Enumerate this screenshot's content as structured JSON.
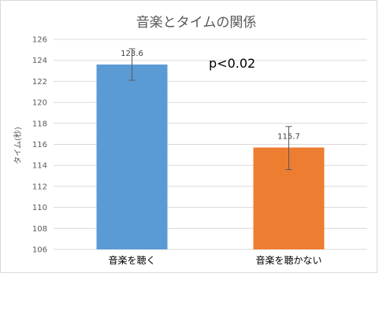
{
  "chart_data": {
    "type": "bar",
    "title": "音楽とタイムの関係",
    "xlabel": "",
    "ylabel": "タイム(秒)",
    "categories": [
      "音楽を聴く",
      "音楽を聴かない"
    ],
    "values": [
      123.6,
      115.7
    ],
    "data_labels": [
      "123.6",
      "115.7"
    ],
    "error_bars": [
      {
        "low": 122.1,
        "high": 125.1
      },
      {
        "low": 113.6,
        "high": 117.7
      }
    ],
    "colors": [
      "#5b9bd5",
      "#ed7d31"
    ],
    "ylim": [
      106,
      126
    ],
    "yticks": [
      106,
      108,
      110,
      112,
      114,
      116,
      118,
      120,
      122,
      124,
      126
    ],
    "grid": true,
    "annotation": "p<0.02"
  }
}
